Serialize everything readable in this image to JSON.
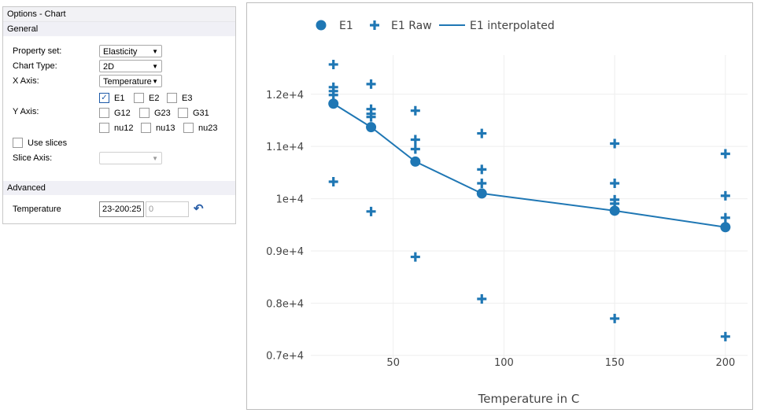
{
  "panel": {
    "title": "Options - Chart",
    "general_label": "General",
    "property_set": {
      "label": "Property set:",
      "value": "Elasticity"
    },
    "chart_type": {
      "label": "Chart Type:",
      "value": "2D"
    },
    "x_axis": {
      "label": "X Axis:",
      "value": "Temperature"
    },
    "y_axis": {
      "label": "Y Axis:",
      "options": [
        {
          "label": "E1",
          "checked": true
        },
        {
          "label": "E2",
          "checked": false
        },
        {
          "label": "E3",
          "checked": false
        },
        {
          "label": "G12",
          "checked": false
        },
        {
          "label": "G23",
          "checked": false
        },
        {
          "label": "G31",
          "checked": false
        },
        {
          "label": "nu12",
          "checked": false
        },
        {
          "label": "nu13",
          "checked": false
        },
        {
          "label": "nu23",
          "checked": false
        }
      ]
    },
    "use_slices": {
      "label": "Use slices",
      "checked": false
    },
    "slice_axis": {
      "label": "Slice Axis:",
      "value": ""
    },
    "advanced_label": "Advanced",
    "temperature": {
      "label": "Temperature",
      "value": "23-200:25",
      "value2": "0"
    },
    "reset_icon": "undo-arrow-icon"
  },
  "chart_data": {
    "type": "scatter",
    "xlabel": "Temperature in C",
    "ylabel": "",
    "xlim": [
      12.8,
      210
    ],
    "ylim": [
      6800,
      12750
    ],
    "xticks": [
      50,
      100,
      150,
      200
    ],
    "yticks": [
      7000,
      8000,
      9000,
      10000,
      11000,
      12000
    ],
    "ytick_labels": [
      "0.7e+4",
      "0.8e+4",
      "0.9e+4",
      "1e+4",
      "1.1e+4",
      "1.2e+4"
    ],
    "grid": true,
    "legend_placement": "top",
    "color": "#1f77b4",
    "series": [
      {
        "name": "E1",
        "mode": "markers",
        "x": [
          23,
          40,
          60,
          90,
          150,
          200
        ],
        "y": [
          11820,
          11370,
          10710,
          10100,
          9770,
          9455
        ]
      },
      {
        "name": "E1 Raw",
        "mode": "cross-markers",
        "x": [
          23,
          23,
          23,
          23,
          23,
          40,
          40,
          40,
          40,
          40,
          60,
          60,
          60,
          60,
          90,
          90,
          90,
          90,
          150,
          150,
          150,
          150,
          150,
          200,
          200,
          200,
          200
        ],
        "y": [
          12570,
          12135,
          12060,
          11985,
          10325,
          12195,
          11715,
          11625,
          11565,
          9755,
          11685,
          11130,
          10950,
          8885,
          11250,
          10560,
          10295,
          8080,
          11055,
          10295,
          9980,
          9905,
          7705,
          10860,
          10055,
          9635,
          7360
        ]
      },
      {
        "name": "E1 interpolated",
        "mode": "line",
        "x": [
          23,
          40,
          60,
          90,
          150,
          200
        ],
        "y": [
          11820,
          11370,
          10710,
          10100,
          9770,
          9455
        ]
      }
    ]
  }
}
